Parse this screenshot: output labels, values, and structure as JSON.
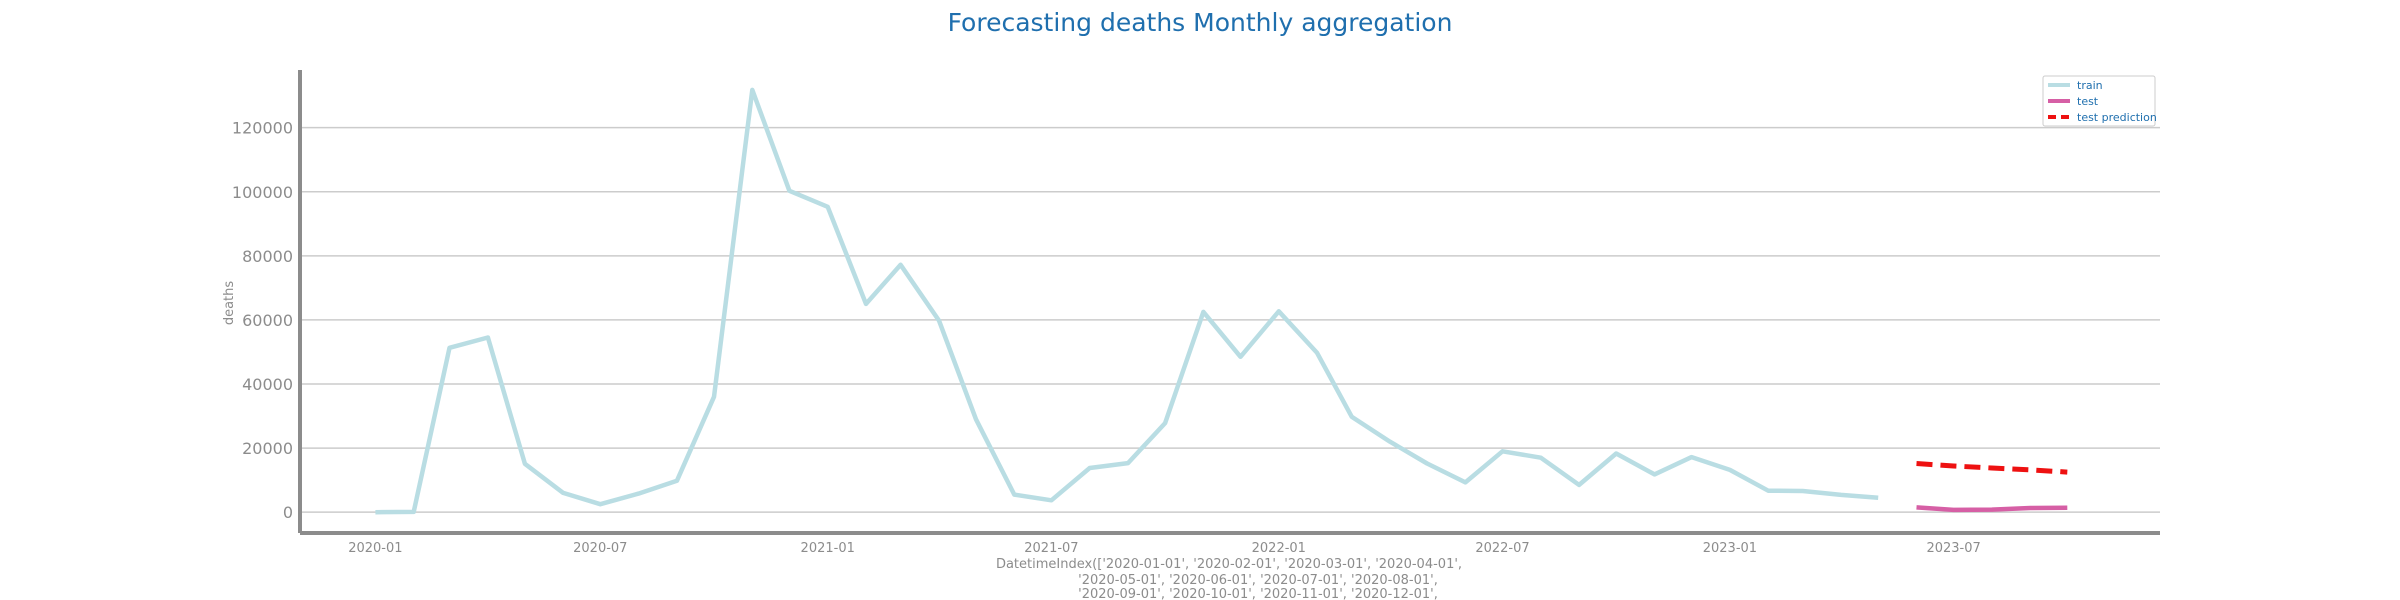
{
  "chart_data": {
    "type": "line",
    "title": "Forecasting deaths Monthly aggregation",
    "ylabel": "deaths",
    "xlabel_lines": [
      "DatetimeIndex(['2020-01-01', '2020-02-01', '2020-03-01', '2020-04-01',",
      "'2020-05-01', '2020-06-01', '2020-07-01', '2020-08-01',",
      "'2020-09-01', '2020-10-01', '2020-11-01', '2020-12-01',"
    ],
    "ylim": [
      -6500,
      138000
    ],
    "xlim": [
      "2019-11-01",
      "2023-12-15"
    ],
    "yticks": [
      0,
      20000,
      40000,
      60000,
      80000,
      100000,
      120000
    ],
    "ytick_labels": [
      "0",
      "20000",
      "40000",
      "60000",
      "80000",
      "100000",
      "120000"
    ],
    "xticks": [
      "2020-01-01",
      "2020-07-01",
      "2021-01-01",
      "2021-07-01",
      "2022-01-01",
      "2022-07-01",
      "2023-01-01",
      "2023-07-01"
    ],
    "xtick_labels": [
      "2020-01",
      "2020-07",
      "2021-01",
      "2021-07",
      "2022-01",
      "2022-07",
      "2023-01",
      "2023-07"
    ],
    "grid": "horizontal",
    "legend_position": "top-right",
    "series": [
      {
        "name": "train",
        "color": "#b9dde3",
        "style": "solid",
        "x": [
          "2020-01-01",
          "2020-02-01",
          "2020-03-01",
          "2020-04-01",
          "2020-05-01",
          "2020-06-01",
          "2020-07-01",
          "2020-08-01",
          "2020-09-01",
          "2020-10-01",
          "2020-11-01",
          "2020-12-01",
          "2021-01-01",
          "2021-02-01",
          "2021-03-01",
          "2021-04-01",
          "2021-05-01",
          "2021-06-01",
          "2021-07-01",
          "2021-08-01",
          "2021-09-01",
          "2021-10-01",
          "2021-11-01",
          "2021-12-01",
          "2022-01-01",
          "2022-02-01",
          "2022-03-01",
          "2022-04-01",
          "2022-05-01",
          "2022-06-01",
          "2022-07-01",
          "2022-08-01",
          "2022-09-01",
          "2022-10-01",
          "2022-11-01",
          "2022-12-01",
          "2023-01-01",
          "2023-02-01",
          "2023-03-01",
          "2023-04-01",
          "2023-05-01"
        ],
        "y": [
          0,
          100,
          51300,
          54500,
          15100,
          6000,
          2500,
          5800,
          9800,
          36000,
          131800,
          100300,
          95300,
          65000,
          77200,
          59800,
          29000,
          5500,
          3700,
          13800,
          15300,
          27800,
          62500,
          48500,
          62700,
          49700,
          29800,
          22000,
          15200,
          9300,
          19000,
          17000,
          8500,
          18300,
          11800,
          17200,
          13200,
          6700,
          6600,
          5400,
          4500
        ]
      },
      {
        "name": "test",
        "color": "#d65fa5",
        "style": "solid",
        "x": [
          "2023-06-01",
          "2023-07-01",
          "2023-08-01",
          "2023-09-01",
          "2023-10-01"
        ],
        "y": [
          1500,
          700,
          800,
          1300,
          1400
        ]
      },
      {
        "name": "test prediction",
        "color": "#ee1111",
        "style": "dashed",
        "x": [
          "2023-06-01",
          "2023-07-01",
          "2023-08-01",
          "2023-09-01",
          "2023-10-01"
        ],
        "y": [
          15200,
          14400,
          13800,
          13200,
          12500
        ]
      }
    ]
  }
}
